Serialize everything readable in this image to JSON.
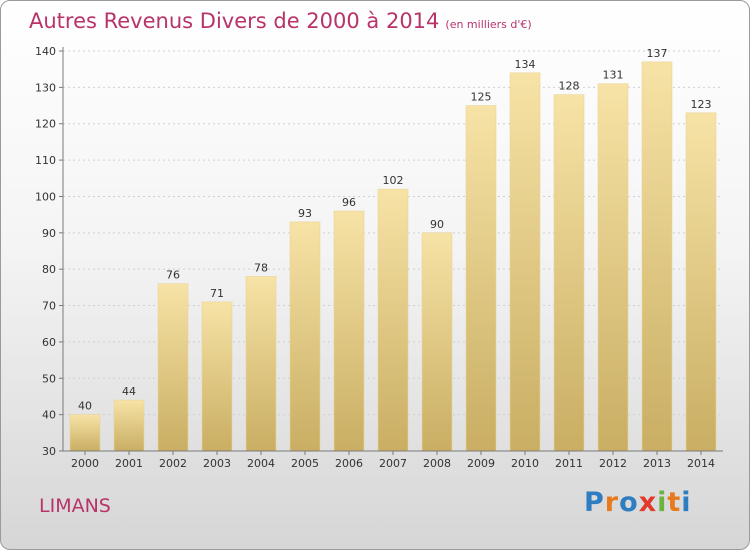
{
  "header": {
    "title": "Autres Revenus Divers de 2000 à 2014",
    "unit": "(en milliers d'€)"
  },
  "footer": {
    "commune": "LIMANS",
    "logo_text": "Proxiti",
    "logo_colors": [
      "#2e7dc1",
      "#e87a1e",
      "#2e7dc1",
      "#e23a2a",
      "#6db33f",
      "#e87a1e",
      "#2e7dc1"
    ]
  },
  "colors": {
    "title": "#b8336a",
    "bar_light": "#f7e3a6",
    "bar_dark": "#c9ae63",
    "axis": "#7a7a7a",
    "grid": "#d0d0d0"
  },
  "chart_data": {
    "type": "bar",
    "title": "Autres Revenus Divers de 2000 à 2014",
    "subtitle": "(en milliers d'€)",
    "xlabel": "",
    "ylabel": "",
    "categories": [
      "2000",
      "2001",
      "2002",
      "2003",
      "2004",
      "2005",
      "2006",
      "2007",
      "2008",
      "2009",
      "2010",
      "2011",
      "2012",
      "2013",
      "2014"
    ],
    "values": [
      40,
      44,
      76,
      71,
      78,
      93,
      96,
      102,
      90,
      125,
      134,
      128,
      131,
      137,
      123
    ],
    "ylim": [
      30,
      140
    ],
    "yticks": [
      30,
      40,
      50,
      60,
      70,
      80,
      90,
      100,
      110,
      120,
      130,
      140
    ],
    "grid": true,
    "legend": "none"
  }
}
